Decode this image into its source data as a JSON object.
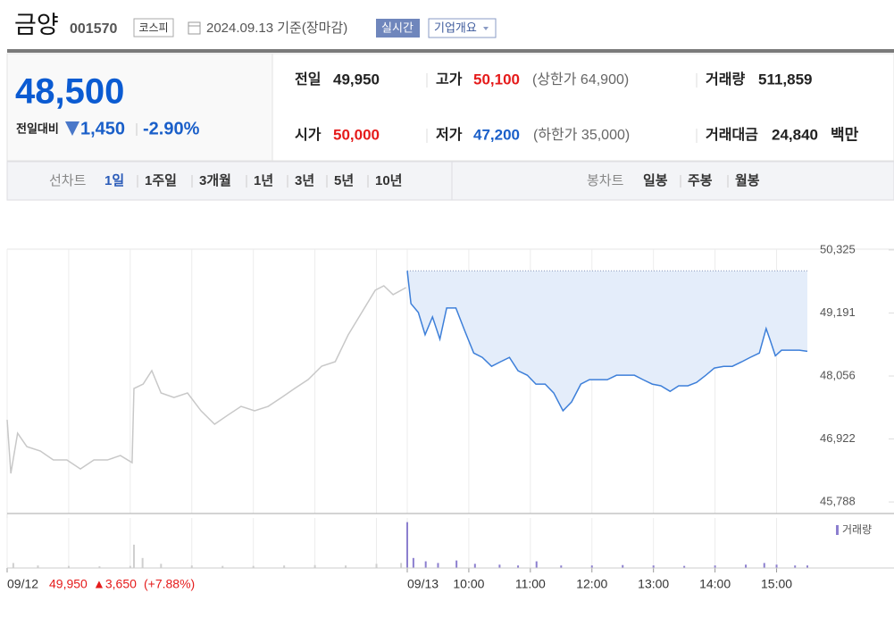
{
  "header": {
    "title": "금양",
    "code": "001570",
    "market": "코스피",
    "date": "2024.09.13 기준(장마감)",
    "realtime": "실시간",
    "company": "기업개요"
  },
  "quote": {
    "price": "48,500",
    "change_label": "전일대비",
    "change": "1,450",
    "rate": "-2.90%"
  },
  "summary": {
    "rows": [
      [
        {
          "label": "전일",
          "value": "49,950"
        },
        {
          "label": "고가",
          "value": "50,100",
          "note": "(상한가 64,900)"
        },
        {
          "label": "거래량",
          "value": "511,859"
        }
      ],
      [
        {
          "label": "시가",
          "value": "50,000"
        },
        {
          "label": "저가",
          "value": "47,200",
          "note": "(하한가 35,000)"
        },
        {
          "label": "거래대금",
          "value": "24,840",
          "unit": "백만"
        }
      ]
    ]
  },
  "tabs": {
    "line_label": "선차트",
    "line": [
      "1일",
      "1주일",
      "3개월",
      "1년",
      "3년",
      "5년",
      "10년"
    ],
    "candle_label": "봉차트",
    "candle": [
      "일봉",
      "주봉",
      "월봉"
    ]
  },
  "footer": {
    "price": "49,950",
    "change": "▲3,650",
    "rate": "(+7.88%)"
  },
  "chart_data": [
    {
      "type": "line",
      "grid": "x",
      "xlim": [
        0,
        13
      ],
      "xticks": [
        {
          "value": 0,
          "label": "09/12"
        },
        {
          "value": 6.5,
          "label": "09/13"
        },
        {
          "value": 7.5,
          "label": "10:00"
        },
        {
          "value": 8.5,
          "label": "11:00"
        },
        {
          "value": 9.5,
          "label": "12:00"
        },
        {
          "value": 10.5,
          "label": "13:00"
        },
        {
          "value": 11.5,
          "label": "14:00"
        },
        {
          "value": 12.5,
          "label": "15:00"
        }
      ],
      "xminor": [
        1,
        2,
        3,
        4,
        5,
        6
      ],
      "ylim": [
        45580,
        50340
      ],
      "yticks": [
        {
          "value": 45788,
          "label": "45,788"
        },
        {
          "value": 46922,
          "label": "46,922"
        },
        {
          "value": 48056,
          "label": "48,056"
        },
        {
          "value": 49191,
          "label": "49,191"
        },
        {
          "value": 50325,
          "label": "50,325"
        }
      ],
      "baseline": 49950,
      "series": [
        {
          "color": "#c8c8c8",
          "x": [
            0,
            0.06,
            0.17,
            0.32,
            0.54,
            0.75,
            0.97,
            1.19,
            1.41,
            1.63,
            1.84,
            2.03,
            2.06,
            2.21,
            2.35,
            2.5,
            2.71,
            2.93,
            3.15,
            3.37,
            3.58,
            3.8,
            4.02,
            4.24,
            4.46,
            4.67,
            4.89,
            5.11,
            5.33,
            5.54,
            5.76,
            5.98,
            6.12,
            6.27,
            6.48
          ],
          "values": [
            47268,
            46302,
            47026,
            46785,
            46705,
            46544,
            46544,
            46383,
            46544,
            46544,
            46624,
            46496,
            47831,
            47911,
            48153,
            47751,
            47670,
            47751,
            47429,
            47188,
            47348,
            47509,
            47429,
            47509,
            47670,
            47831,
            47992,
            48233,
            48314,
            48796,
            49199,
            49601,
            49681,
            49521,
            49649
          ]
        },
        {
          "color": "#3d7fd9",
          "fill": "#e4edfa",
          "x": [
            6.5,
            6.56,
            6.68,
            6.79,
            6.91,
            7.03,
            7.14,
            7.29,
            7.43,
            7.58,
            7.72,
            7.87,
            8.01,
            8.16,
            8.3,
            8.45,
            8.59,
            8.74,
            8.88,
            9.03,
            9.17,
            9.32,
            9.46,
            9.61,
            9.75,
            9.9,
            10.04,
            10.19,
            10.33,
            10.48,
            10.62,
            10.77,
            10.91,
            11.06,
            11.2,
            11.35,
            11.49,
            11.64,
            11.78,
            11.93,
            12.07,
            12.22,
            12.33,
            12.39,
            12.48,
            12.58,
            12.73,
            12.87,
            13
          ],
          "values": [
            49950,
            49360,
            49200,
            48800,
            49120,
            48720,
            49280,
            49280,
            48880,
            48470,
            48390,
            48230,
            48310,
            48390,
            48150,
            48070,
            47910,
            47910,
            47750,
            47430,
            47590,
            47910,
            47990,
            47990,
            47990,
            48070,
            48070,
            48070,
            47990,
            47910,
            47880,
            47780,
            47880,
            47880,
            47940,
            48070,
            48200,
            48230,
            48230,
            48310,
            48390,
            48470,
            48910,
            48720,
            48420,
            48520,
            48520,
            48520,
            48500
          ]
        }
      ]
    },
    {
      "type": "bar",
      "xlim": [
        0,
        13
      ],
      "ylim": [
        0,
        60000
      ],
      "series": [
        {
          "color": "#cfcfcf",
          "x": [
            0.1,
            0.5,
            1,
            1.5,
            2,
            2.06,
            2.2,
            2.5,
            3,
            3.5,
            4,
            4.5,
            5,
            5.5,
            6,
            6.4
          ],
          "values": [
            6000,
            3000,
            2500,
            2000,
            2500,
            28000,
            12000,
            5000,
            3000,
            2500,
            2500,
            3000,
            3500,
            3000,
            5000,
            6000
          ]
        },
        {
          "name": "거래량",
          "color": "#8c7fcf",
          "x": [
            6.5,
            6.6,
            6.8,
            7,
            7.3,
            7.6,
            8,
            8.3,
            8.6,
            9,
            9.5,
            10,
            10.5,
            11,
            11.5,
            12,
            12.3,
            12.5,
            12.8,
            13
          ],
          "values": [
            55000,
            12000,
            8000,
            6000,
            9000,
            5000,
            4000,
            3000,
            8000,
            3000,
            3000,
            3500,
            3000,
            2500,
            3000,
            4000,
            6000,
            4000,
            3000,
            3000
          ]
        }
      ]
    }
  ]
}
